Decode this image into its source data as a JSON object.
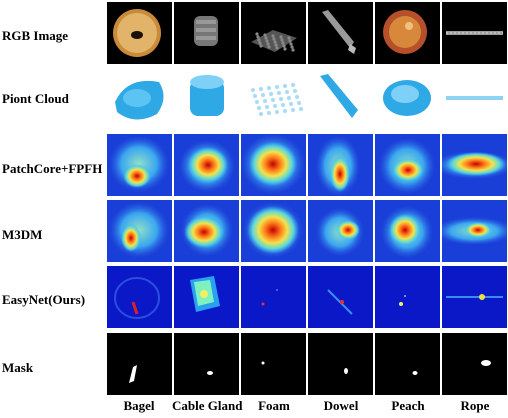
{
  "rows": [
    "RGB Image",
    "Piont Cloud",
    "PatchCore+FPFH",
    "M3DM",
    "EasyNet(Ours)",
    "Mask"
  ],
  "columns": [
    "Bagel",
    "Cable Gland",
    "Foam",
    "Dowel",
    "Peach",
    "Rope"
  ],
  "colors": {
    "rgb_bg": "#000000",
    "pointcloud": "#2fa8e6",
    "heat_low": "#1a3fd8",
    "heat_mid": "#4fd0e8",
    "heat_high": "#e51f1f",
    "easynet_bg": "#0a18c8",
    "mask_bg": "#000000",
    "mask_fg": "#ffffff"
  }
}
